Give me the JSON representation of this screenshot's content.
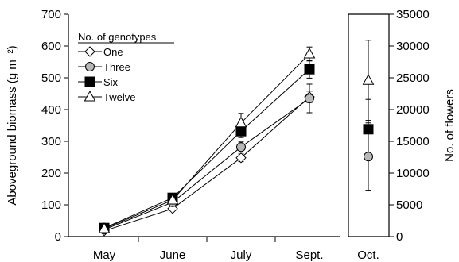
{
  "chart_data": [
    {
      "type": "line",
      "categories": [
        "May",
        "June",
        "July",
        "Sept."
      ],
      "ylabel": "Aboveground biomass (g m⁻²)",
      "ylim": [
        0,
        700
      ],
      "yticks": [
        0,
        100,
        200,
        300,
        400,
        500,
        600,
        700
      ],
      "legend": {
        "title": "No. of genotypes",
        "placement": "top-left"
      },
      "series": [
        {
          "name": "One",
          "marker": "diamond-open",
          "values": [
            18,
            88,
            248,
            440
          ],
          "errors": [
            4,
            6,
            12,
            18
          ]
        },
        {
          "name": "Three",
          "marker": "circle-gray",
          "values": [
            22,
            108,
            282,
            435
          ],
          "errors": [
            5,
            8,
            16,
            45
          ]
        },
        {
          "name": "Six",
          "marker": "square-filled",
          "values": [
            27,
            122,
            332,
            527
          ],
          "errors": [
            4,
            7,
            20,
            28
          ]
        },
        {
          "name": "Twelve",
          "marker": "triangle-open",
          "values": [
            25,
            115,
            358,
            575
          ],
          "errors": [
            5,
            8,
            30,
            22
          ]
        }
      ]
    },
    {
      "type": "scatter",
      "categories": [
        "Oct."
      ],
      "ylabel": "No. of flowers",
      "ylim": [
        0,
        35000
      ],
      "yticks": [
        0,
        5000,
        10000,
        15000,
        20000,
        25000,
        30000,
        35000
      ],
      "series": [
        {
          "name": "One",
          "marker": "diamond-open",
          "values": [
            null
          ],
          "errors": [
            null
          ]
        },
        {
          "name": "Three",
          "marker": "circle-gray",
          "values": [
            12600
          ],
          "errors": [
            5300
          ]
        },
        {
          "name": "Six",
          "marker": "square-filled",
          "values": [
            16900
          ],
          "errors": [
            4700
          ]
        },
        {
          "name": "Twelve",
          "marker": "triangle-open",
          "values": [
            24600
          ],
          "errors": [
            6300
          ]
        }
      ]
    }
  ]
}
